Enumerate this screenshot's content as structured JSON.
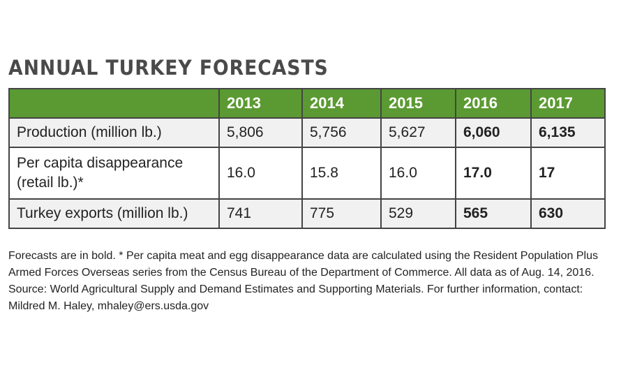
{
  "header": {
    "title": "ANNUAL TURKEY FORECASTS"
  },
  "table": {
    "columns": [
      "2013",
      "2014",
      "2015",
      "2016",
      "2017"
    ],
    "rows": [
      {
        "label": "Production (million lb.)",
        "values": [
          "5,806",
          "5,756",
          "5,627",
          "6,060",
          "6,135"
        ]
      },
      {
        "label": "Per capita disappearance (retail lb.)*",
        "values": [
          "16.0",
          "15.8",
          "16.0",
          "17.0",
          "17"
        ]
      },
      {
        "label": "Turkey exports (million lb.)",
        "values": [
          "741",
          "775",
          "529",
          "565",
          "630"
        ]
      }
    ]
  },
  "footnote": "Forecasts are in bold. * Per capita meat and egg disappearance data are calculated using the Resident Population Plus Armed Forces Overseas series from the Census Bureau of the Department of Commerce. All data as of Aug. 14, 2016. Source: World Agricultural Supply and Demand Estimates and Supporting Materials. For further information, contact: Mildred M. Haley, mhaley@ers.usda.gov"
}
